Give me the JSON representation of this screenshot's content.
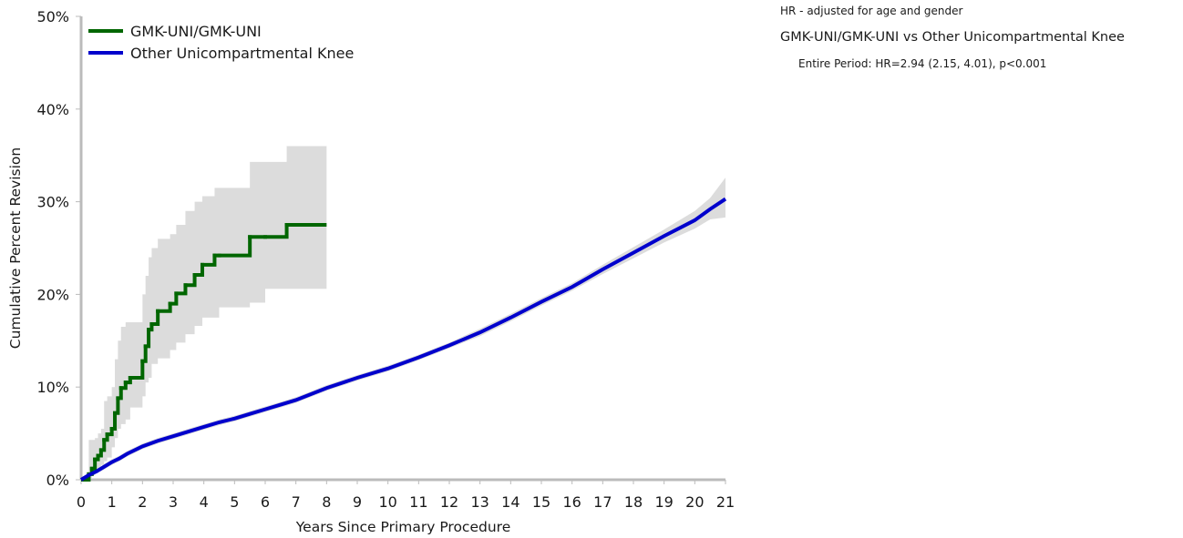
{
  "chart_data": {
    "type": "line",
    "xlabel": "Years Since Primary Procedure",
    "ylabel": "Cumulative Percent Revision",
    "xlim": [
      0,
      21
    ],
    "ylim": [
      0,
      50
    ],
    "x_ticks": [
      0,
      1,
      2,
      3,
      4,
      5,
      6,
      7,
      8,
      9,
      10,
      11,
      12,
      13,
      14,
      15,
      16,
      17,
      18,
      19,
      20,
      21
    ],
    "y_ticks": [
      0,
      10,
      20,
      30,
      40,
      50
    ],
    "y_tick_labels": [
      "0%",
      "10%",
      "20%",
      "30%",
      "40%",
      "50%"
    ],
    "legend_position": "top-left",
    "grid": false,
    "series": [
      {
        "name": "GMK-UNI/GMK-UNI",
        "color": "#006600",
        "step": true,
        "x": [
          0,
          0.25,
          0.35,
          0.45,
          0.55,
          0.65,
          0.75,
          0.85,
          1.0,
          1.1,
          1.2,
          1.3,
          1.45,
          1.6,
          2.0,
          2.1,
          2.2,
          2.3,
          2.5,
          2.9,
          3.1,
          3.4,
          3.7,
          3.95,
          4.35,
          4.5,
          5.5,
          6.0,
          6.7,
          8.0
        ],
        "y": [
          0.0,
          0.6,
          1.2,
          2.2,
          2.6,
          3.2,
          4.3,
          4.9,
          5.5,
          7.2,
          8.8,
          9.9,
          10.5,
          11.0,
          12.8,
          14.4,
          16.2,
          16.8,
          18.2,
          19.0,
          20.1,
          21.0,
          22.1,
          23.2,
          24.2,
          24.2,
          26.2,
          26.2,
          27.5,
          27.5
        ],
        "ci_lower": [
          0.0,
          0.1,
          0.2,
          0.5,
          0.7,
          1.0,
          1.6,
          2.0,
          2.4,
          3.5,
          4.5,
          5.5,
          6.0,
          6.5,
          7.8,
          9.0,
          10.5,
          11.0,
          12.5,
          13.1,
          14.0,
          14.8,
          15.7,
          16.6,
          17.5,
          17.5,
          18.6,
          19.1,
          20.6,
          20.6
        ],
        "ci_upper": [
          0.0,
          4.3,
          4.3,
          4.5,
          5.0,
          5.5,
          8.5,
          9.0,
          10.0,
          13.0,
          15.0,
          16.5,
          17.0,
          17.0,
          20.0,
          22.0,
          24.0,
          25.0,
          26.0,
          26.5,
          27.5,
          29.0,
          30.0,
          30.6,
          31.5,
          31.5,
          34.3,
          34.3,
          36.0,
          36.0
        ]
      },
      {
        "name": "Other Unicompartmental Knee",
        "color": "#0000cc",
        "step": false,
        "x": [
          0,
          0.25,
          0.5,
          0.75,
          1.0,
          1.25,
          1.5,
          2.0,
          2.5,
          3.0,
          3.5,
          4.0,
          4.5,
          5.0,
          5.5,
          6.0,
          6.5,
          7.0,
          8.0,
          9.0,
          10.0,
          11.0,
          12.0,
          13.0,
          14.0,
          15.0,
          16.0,
          17.0,
          18.0,
          19.0,
          20.0,
          20.5,
          21.0
        ],
        "y": [
          0.0,
          0.5,
          0.9,
          1.4,
          1.9,
          2.3,
          2.8,
          3.6,
          4.2,
          4.7,
          5.2,
          5.7,
          6.2,
          6.6,
          7.1,
          7.6,
          8.1,
          8.6,
          9.9,
          11.0,
          12.0,
          13.2,
          14.5,
          15.9,
          17.5,
          19.2,
          20.8,
          22.7,
          24.5,
          26.3,
          28.0,
          29.2,
          30.3
        ],
        "ci_lower": [
          0.0,
          0.3,
          0.7,
          1.1,
          1.6,
          2.0,
          2.5,
          3.3,
          3.9,
          4.4,
          4.9,
          5.4,
          5.9,
          6.3,
          6.8,
          7.3,
          7.8,
          8.3,
          9.6,
          10.7,
          11.7,
          12.9,
          14.2,
          15.5,
          17.1,
          18.8,
          20.4,
          22.2,
          23.9,
          25.6,
          27.1,
          28.1,
          28.3
        ],
        "ci_upper": [
          0.0,
          0.7,
          1.1,
          1.7,
          2.2,
          2.6,
          3.1,
          3.9,
          4.5,
          5.0,
          5.5,
          6.0,
          6.5,
          6.9,
          7.4,
          7.9,
          8.4,
          8.9,
          10.2,
          11.3,
          12.3,
          13.5,
          14.8,
          16.3,
          17.9,
          19.6,
          21.2,
          23.2,
          25.1,
          27.0,
          29.0,
          30.4,
          32.6
        ]
      }
    ]
  },
  "hr_panel": {
    "note": "HR - adjusted for age and gender",
    "comparison": "GMK-UNI/GMK-UNI vs Other Unicompartmental Knee",
    "periods": [
      {
        "label": "Entire Period: HR=2.94 (2.15, 4.01), p<0.001"
      }
    ]
  },
  "colors": {
    "ci_band": "#dcdcdc",
    "axis": "#bbbbbb"
  }
}
